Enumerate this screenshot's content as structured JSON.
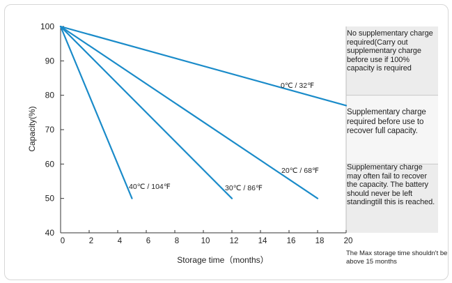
{
  "chart_data": {
    "type": "line",
    "title": "",
    "xlabel": "Storage time（months）",
    "ylabel": "Capacity(%)",
    "xlim": [
      0,
      20
    ],
    "ylim": [
      40,
      100
    ],
    "xticks": [
      0,
      2,
      4,
      6,
      8,
      10,
      12,
      14,
      16,
      18,
      20
    ],
    "yticks": [
      40,
      50,
      60,
      70,
      80,
      90,
      100
    ],
    "grid": false,
    "line_color": "#1a8bc9",
    "series": [
      {
        "name": "0℃ / 32℉",
        "x": [
          0,
          20
        ],
        "y": [
          100,
          77
        ]
      },
      {
        "name": "20℃ / 68℉",
        "x": [
          0,
          18
        ],
        "y": [
          100,
          50
        ]
      },
      {
        "name": "30℃ / 86℉",
        "x": [
          0,
          12
        ],
        "y": [
          100,
          50
        ]
      },
      {
        "name": "40℃ / 104℉",
        "x": [
          0,
          5
        ],
        "y": [
          100,
          50
        ]
      }
    ],
    "zones": [
      {
        "range": [
          80,
          100
        ],
        "shade": "#ececec",
        "text": "No supplementary charge required(Carry out supplementary charge before use if 100% capacity is required"
      },
      {
        "range": [
          60,
          80
        ],
        "shade": "#f6f6f6",
        "text": "Supplementary charge required before use to recover full capacity."
      },
      {
        "range": [
          40,
          60
        ],
        "shade": "#ececec",
        "text": "Supplementary charge may often fail to recover the capacity. The battery should never be left standingtill this is reached."
      }
    ],
    "footnote": "The Max storage time shouldn't be above 15 months"
  }
}
